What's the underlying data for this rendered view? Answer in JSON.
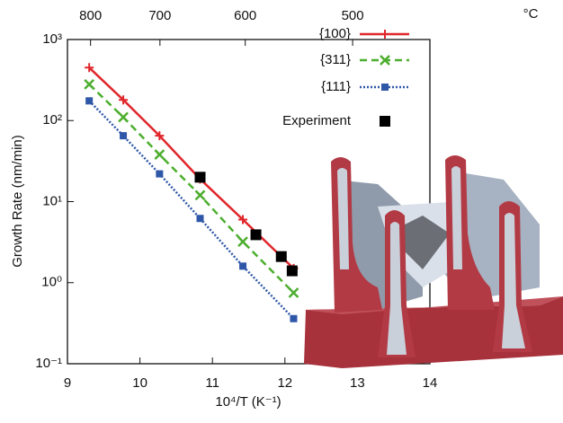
{
  "chart_data": {
    "type": "line",
    "xlabel": "10⁴/T (K⁻¹)",
    "ylabel": "Growth Rate (nm/min)",
    "xlim": [
      9,
      14
    ],
    "xticks": [
      9,
      10,
      11,
      12,
      13,
      14
    ],
    "ylim": [
      0.1,
      1000
    ],
    "log_y": true,
    "yticks": [
      {
        "value": 0.1,
        "label": "10⁻¹"
      },
      {
        "value": 1,
        "label": "10⁰"
      },
      {
        "value": 10,
        "label": "10¹"
      },
      {
        "value": 100,
        "label": "10²"
      },
      {
        "value": 1000,
        "label": "10³"
      }
    ],
    "x2ticks": [
      800,
      700,
      600,
      500
    ],
    "x2unit": "°C",
    "legend": "upper right",
    "series": [
      {
        "name": "{100}",
        "color": "#e0262b",
        "marker": "plus",
        "dash": "solid",
        "x": [
          9.3,
          9.77,
          10.27,
          10.83,
          11.42,
          12.12
        ],
        "values": [
          450,
          180,
          65,
          19,
          6,
          1.5
        ]
      },
      {
        "name": "{311}",
        "color": "#4cae2e",
        "marker": "cross",
        "dash": "dashed",
        "x": [
          9.3,
          9.77,
          10.27,
          10.83,
          11.42,
          12.12
        ],
        "values": [
          280,
          110,
          38,
          12,
          3.2,
          0.75
        ]
      },
      {
        "name": "{111}",
        "color": "#2f57a8",
        "marker": "square",
        "dash": "dotted",
        "x": [
          9.3,
          9.77,
          10.27,
          10.83,
          11.42,
          12.12
        ],
        "values": [
          175,
          65,
          22,
          6.2,
          1.6,
          0.36
        ]
      },
      {
        "name": "Experiment",
        "color": "#000000",
        "marker": "bigsquare",
        "dash": "none",
        "x": [
          10.83,
          11.6,
          11.95,
          12.1
        ],
        "values": [
          20,
          3.9,
          2.1,
          1.4
        ]
      }
    ]
  }
}
